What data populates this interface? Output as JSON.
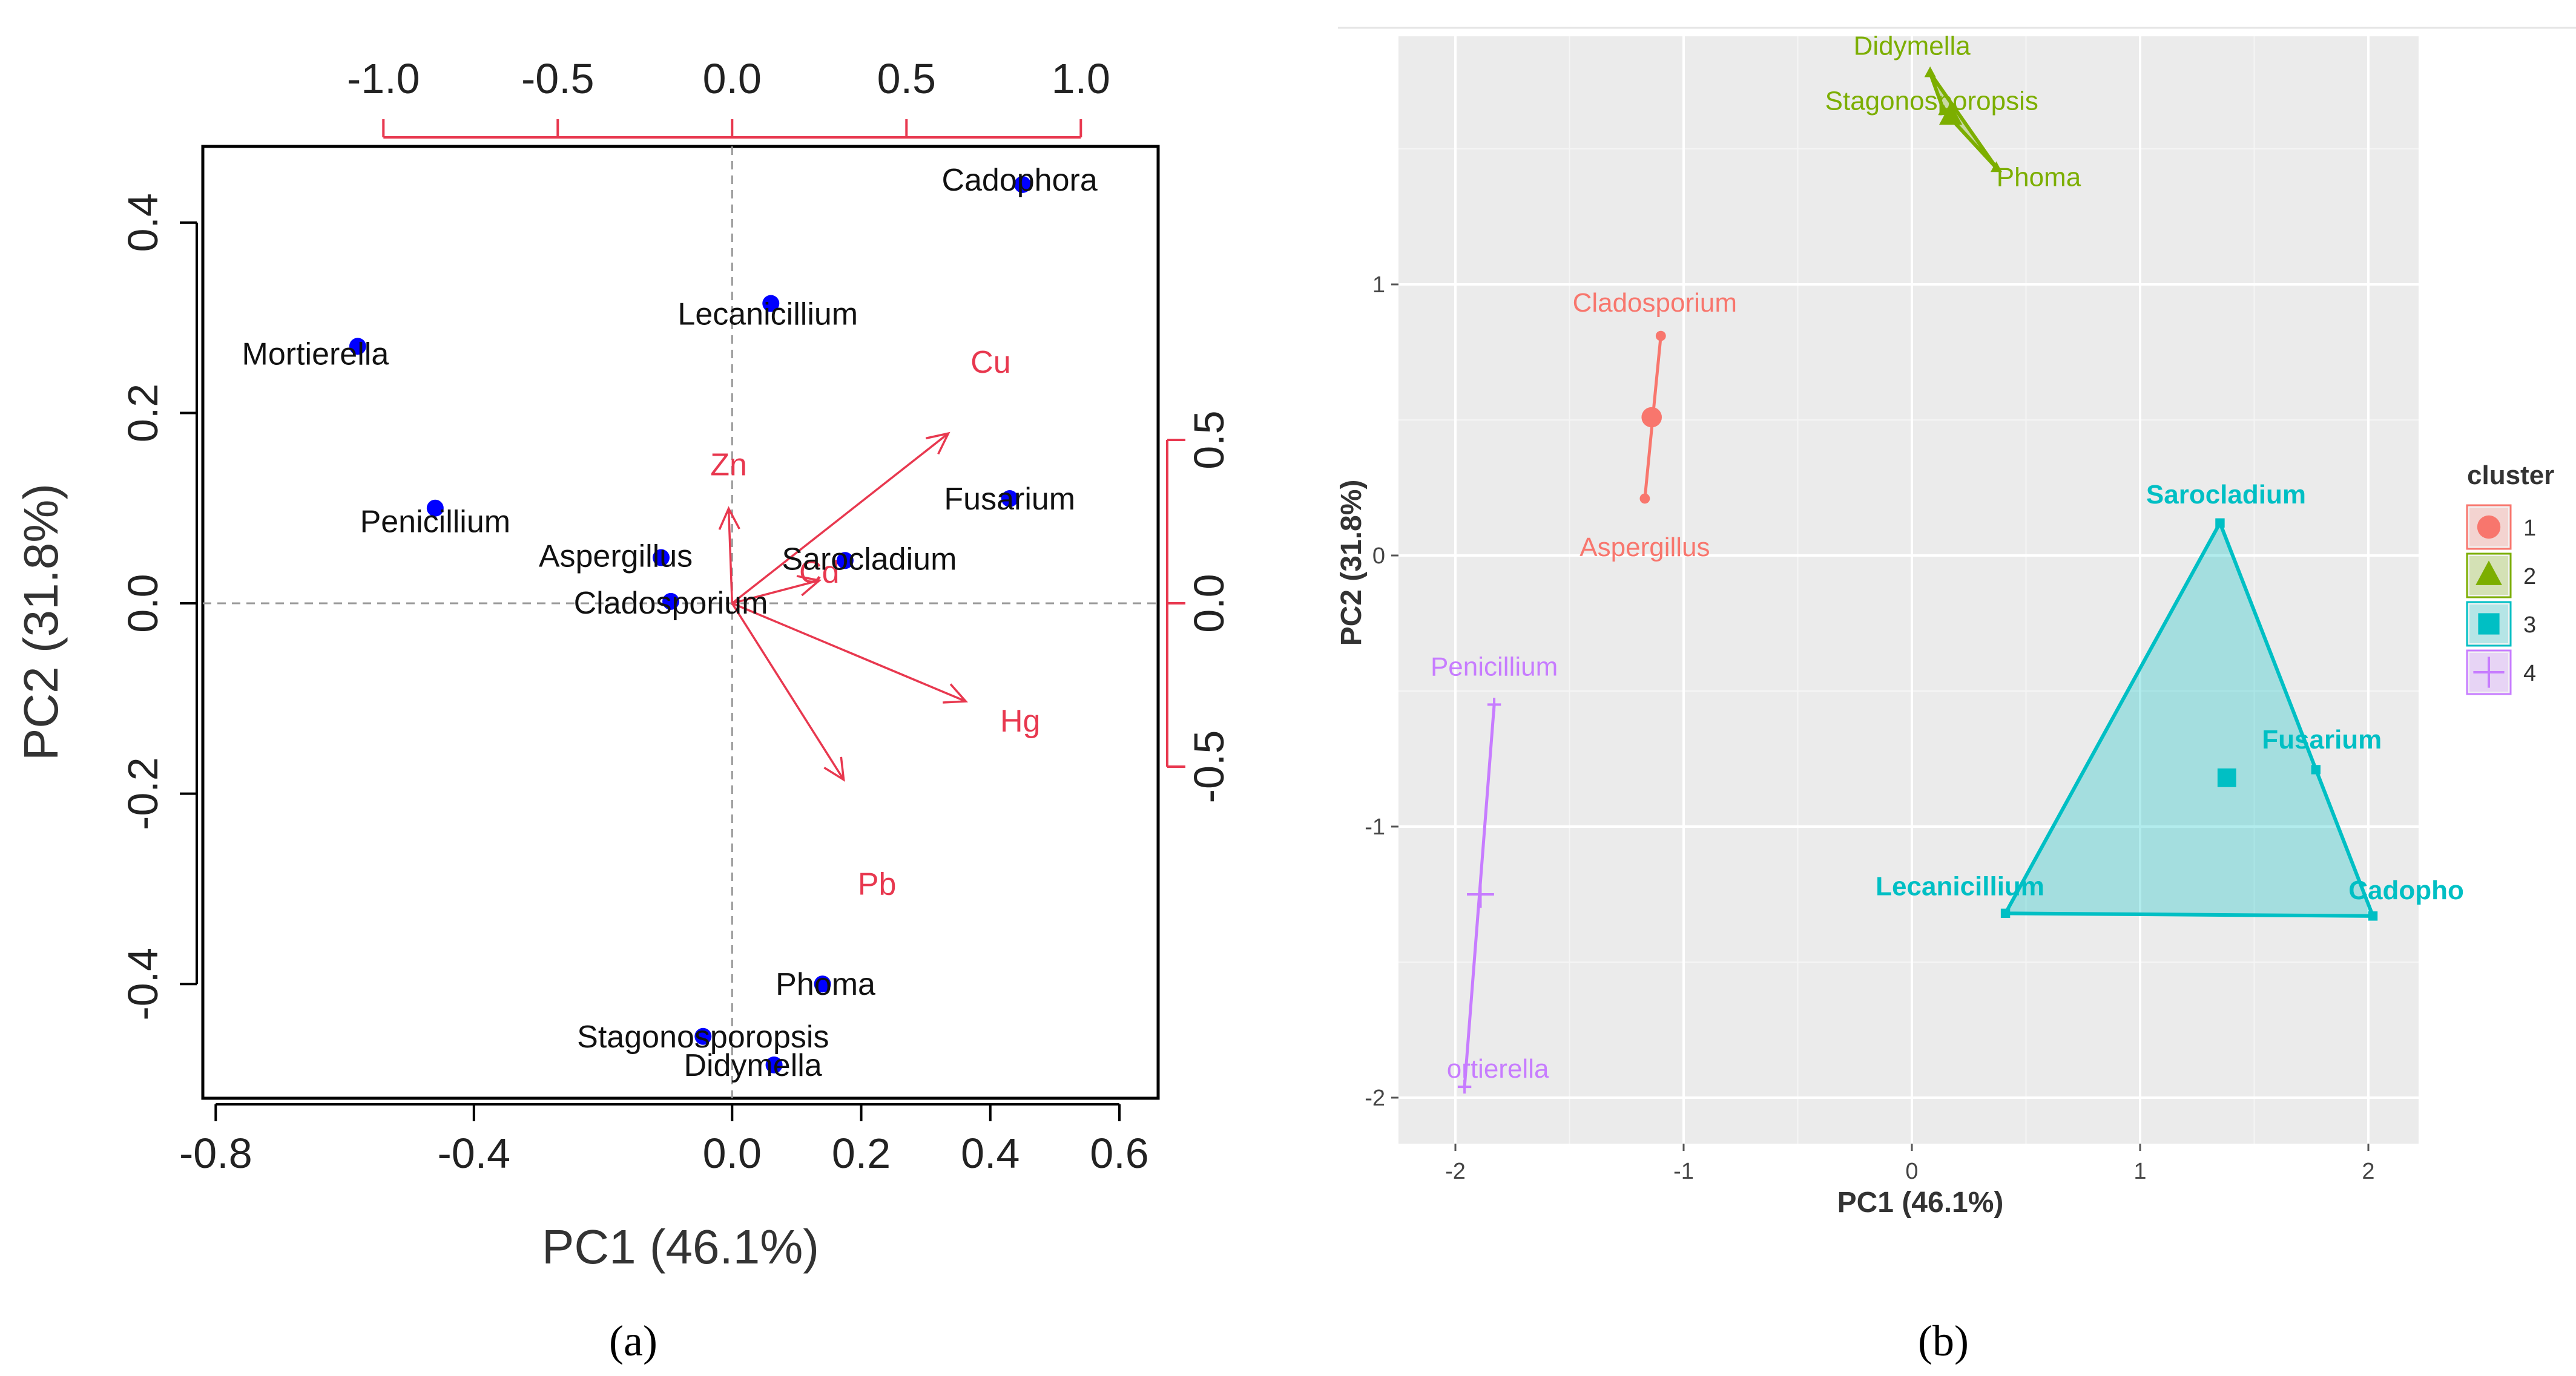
{
  "chart_data": [
    {
      "type": "scatter",
      "title": "",
      "panel_label": "(a)",
      "xlabel": "PC1 (46.1%)",
      "ylabel": "PC2 (31.8%)",
      "xlim": [
        -0.82,
        0.66
      ],
      "ylim": [
        -0.52,
        0.48
      ],
      "x_ticks": [
        -0.8,
        -0.4,
        0.0,
        0.2,
        0.4,
        0.6
      ],
      "x_tick_labels": [
        "-0.8",
        "-0.4",
        "0.0",
        "0.2",
        "0.4",
        "0.6"
      ],
      "y_ticks": [
        0.4,
        0.2,
        0.0,
        -0.2,
        -0.4
      ],
      "y_tick_labels": [
        "0.4",
        "0.2",
        "0.0",
        "-0.2",
        "-0.4"
      ],
      "top_ticks": [
        -1.0,
        -0.5,
        0.0,
        0.5,
        1.0
      ],
      "top_tick_labels": [
        "-1.0",
        "-0.5",
        "0.0",
        "0.5",
        "1.0"
      ],
      "right_ticks": [
        0.5,
        0.0,
        -0.5
      ],
      "right_tick_labels": [
        "0.5",
        "0.0",
        "-0.5"
      ],
      "points": [
        {
          "label": "Cadophora",
          "x": 0.45,
          "y": 0.44
        },
        {
          "label": "Lecanicillium",
          "x": 0.06,
          "y": 0.315
        },
        {
          "label": "Mortierella",
          "x": -0.58,
          "y": 0.27
        },
        {
          "label": "Penicillium",
          "x": -0.46,
          "y": 0.1
        },
        {
          "label": "Fusarium",
          "x": 0.43,
          "y": 0.11
        },
        {
          "label": "Aspergillus",
          "x": -0.11,
          "y": 0.048
        },
        {
          "label": "Sarocladium",
          "x": 0.175,
          "y": 0.045
        },
        {
          "label": "Cladosporium",
          "x": -0.095,
          "y": 0.002
        },
        {
          "label": "Phoma",
          "x": 0.14,
          "y": -0.4
        },
        {
          "label": "Stagonosporopsis",
          "x": -0.045,
          "y": -0.455
        },
        {
          "label": "Didymella",
          "x": 0.065,
          "y": -0.485
        }
      ],
      "loadings": [
        {
          "label": "Cu",
          "x": 0.62,
          "y": 0.52
        },
        {
          "label": "Zn",
          "x": -0.01,
          "y": 0.29
        },
        {
          "label": "Cd",
          "x": 0.25,
          "y": 0.07
        },
        {
          "label": "Hg",
          "x": 0.67,
          "y": -0.3
        },
        {
          "label": "Pb",
          "x": 0.32,
          "y": -0.54
        }
      ],
      "loading_label_offsets_note": "labels drawn beyond arrow tips",
      "point_color": "#0000ff",
      "loading_color": "#e8384f"
    },
    {
      "type": "scatter",
      "title": "",
      "panel_label": "(b)",
      "xlabel": "PC1 (46.1%)",
      "ylabel": "PC2 (31.8%)",
      "xlim": [
        -2.2,
        2.2
      ],
      "ylim": [
        -2.15,
        1.95
      ],
      "x_ticks": [
        -2,
        -1,
        0,
        1,
        2
      ],
      "x_tick_labels": [
        "-2",
        "-1",
        "0",
        "1",
        "2"
      ],
      "y_ticks": [
        1,
        0,
        -1,
        -2
      ],
      "y_tick_labels": [
        "1",
        "0",
        "-1",
        "-2"
      ],
      "legend_title": "cluster",
      "legend": [
        {
          "label": "1",
          "color": "#f8766d"
        },
        {
          "label": "2",
          "color": "#7cae00"
        },
        {
          "label": "3",
          "color": "#00bfc4"
        },
        {
          "label": "4",
          "color": "#c77cff"
        }
      ],
      "clusters": [
        {
          "cluster": "1",
          "color": "#f8766d",
          "centroid": {
            "x": -1.14,
            "y": 0.51
          },
          "points": [
            {
              "label": "Cladosporium",
              "x": -1.1,
              "y": 0.81
            },
            {
              "label": "Aspergillus",
              "x": -1.17,
              "y": 0.21
            }
          ]
        },
        {
          "cluster": "2",
          "color": "#7cae00",
          "centroid": {
            "x": 0.17,
            "y": 1.62
          },
          "points": [
            {
              "label": "Didymella",
              "x": 0.08,
              "y": 1.78
            },
            {
              "label": "Stagonosporopsis",
              "x": 0.14,
              "y": 1.64
            },
            {
              "label": "Phoma",
              "x": 0.37,
              "y": 1.43
            }
          ]
        },
        {
          "cluster": "3",
          "color": "#00bfc4",
          "centroid": {
            "x": 1.38,
            "y": -0.82
          },
          "points": [
            {
              "label": "Sarocladium",
              "x": 1.35,
              "y": 0.12
            },
            {
              "label": "Fusarium",
              "x": 1.77,
              "y": -0.79
            },
            {
              "label": "Lecanicillium",
              "x": 0.41,
              "y": -1.32
            },
            {
              "label": "Cadophora",
              "x": 2.02,
              "y": -1.33
            }
          ]
        },
        {
          "cluster": "4",
          "color": "#c77cff",
          "centroid": {
            "x": -1.89,
            "y": -1.25
          },
          "points": [
            {
              "label": "Penicillium",
              "x": -1.83,
              "y": -0.55
            },
            {
              "label": "Mortierella",
              "x": -1.96,
              "y": -1.96
            }
          ]
        }
      ],
      "visible_label_text": {
        "Cadophora": "Cadopho",
        "Mortierella": "ortierella"
      }
    }
  ]
}
